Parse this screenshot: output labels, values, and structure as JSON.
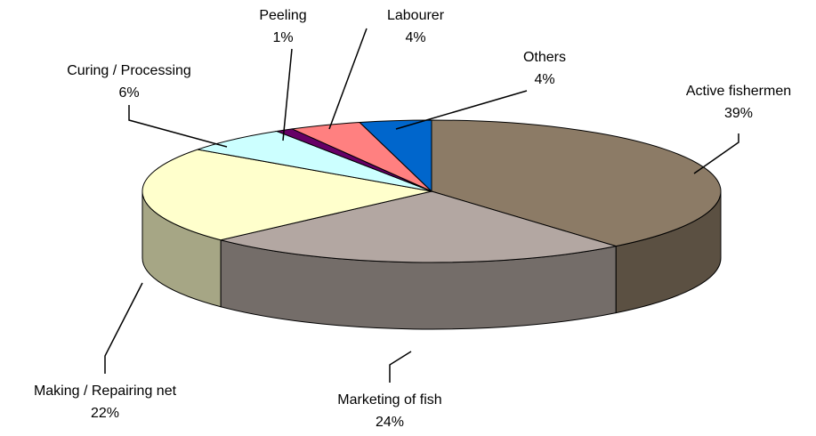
{
  "chart_data": {
    "type": "pie",
    "categories": [
      "Active fishermen",
      "Marketing of fish",
      "Making / Repairing net",
      "Curing / Processing",
      "Peeling",
      "Labourer",
      "Others"
    ],
    "values": [
      39,
      24,
      22,
      6,
      1,
      4,
      4
    ],
    "value_labels": [
      "39%",
      "24%",
      "22%",
      "6%",
      "1%",
      "4%",
      "4%"
    ],
    "colors": [
      "#8c7b66",
      "#b3a7a2",
      "#ffffcc",
      "#ccffff",
      "#660066",
      "#ff8080",
      "#0066cc"
    ]
  }
}
